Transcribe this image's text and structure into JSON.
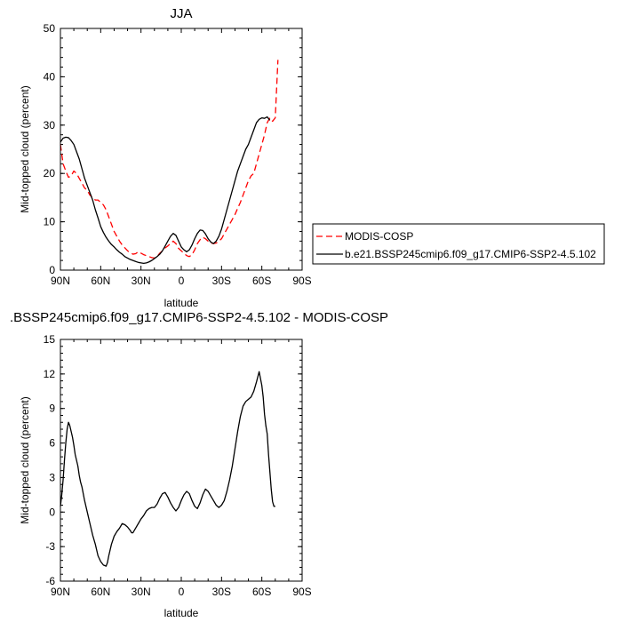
{
  "chart_data": [
    {
      "type": "line",
      "title": "JJA",
      "xlabel": "latitude",
      "ylabel": "Mid-topped cloud (percent)",
      "xlim": [
        90,
        -90
      ],
      "ylim": [
        0,
        50
      ],
      "x_ticks": [
        90,
        60,
        30,
        0,
        -30,
        -60,
        -90
      ],
      "x_tick_labels": [
        "90N",
        "60N",
        "30N",
        "0",
        "30S",
        "60S",
        "90S"
      ],
      "y_ticks": [
        0,
        10,
        20,
        30,
        40,
        50
      ],
      "y_tick_labels": [
        "0",
        "10",
        "20",
        "30",
        "40",
        "50"
      ],
      "legend_position": "right",
      "series": [
        {
          "name": "MODIS-COSP",
          "color": "#ff0000",
          "dash": "dashed",
          "x": [
            90,
            88,
            86,
            84,
            82,
            80,
            78,
            76,
            74,
            72,
            70,
            68,
            66,
            64,
            62,
            60,
            58,
            56,
            54,
            52,
            50,
            48,
            46,
            44,
            42,
            40,
            38,
            36,
            34,
            32,
            30,
            28,
            26,
            24,
            22,
            20,
            18,
            16,
            14,
            12,
            10,
            8,
            6,
            4,
            2,
            0,
            -2,
            -4,
            -6,
            -8,
            -10,
            -12,
            -14,
            -16,
            -18,
            -20,
            -22,
            -24,
            -26,
            -28,
            -30,
            -32,
            -34,
            -36,
            -38,
            -40,
            -42,
            -44,
            -46,
            -48,
            -50,
            -52,
            -54,
            -56,
            -58,
            -60,
            -62,
            -64,
            -66,
            -68,
            -70,
            -72
          ],
          "y": [
            26,
            22,
            20.5,
            19.2,
            19.5,
            20.5,
            20,
            19,
            18,
            17,
            16.5,
            15.5,
            15,
            14.5,
            14.5,
            14,
            13.5,
            12.5,
            11,
            9.5,
            8,
            7,
            6,
            5.2,
            4.6,
            4,
            3.6,
            3.3,
            3.4,
            3.8,
            3.5,
            3.2,
            3.0,
            2.8,
            2.6,
            2.5,
            2.8,
            3.5,
            4.0,
            4.6,
            5.0,
            5.5,
            6.0,
            5.5,
            4.5,
            4.0,
            3.5,
            3.0,
            2.8,
            3.2,
            4.2,
            5.5,
            6.3,
            6.8,
            6.5,
            6.0,
            5.6,
            5.5,
            5.6,
            6.0,
            6.5,
            7.5,
            8.5,
            9.5,
            10.5,
            11.5,
            12.8,
            14.0,
            15.5,
            17.0,
            18.5,
            19.5,
            20,
            22,
            24,
            26,
            28,
            30.5,
            31.5,
            30.8,
            31.5,
            43.5
          ]
        },
        {
          "name": "b.e21.BSSP245cmip6.f09_g17.CMIP6-SSP2-4.5.102",
          "color": "#000000",
          "dash": "solid",
          "x": [
            90,
            88,
            86,
            84,
            82,
            80,
            78,
            76,
            74,
            72,
            70,
            68,
            66,
            64,
            62,
            60,
            58,
            56,
            54,
            52,
            50,
            48,
            46,
            44,
            42,
            40,
            38,
            36,
            34,
            32,
            30,
            28,
            26,
            24,
            22,
            20,
            18,
            16,
            14,
            12,
            10,
            8,
            6,
            4,
            2,
            0,
            -2,
            -4,
            -6,
            -8,
            -10,
            -12,
            -14,
            -16,
            -18,
            -20,
            -22,
            -24,
            -26,
            -28,
            -30,
            -32,
            -34,
            -36,
            -38,
            -40,
            -42,
            -44,
            -46,
            -48,
            -50,
            -52,
            -54,
            -56,
            -58,
            -60,
            -62,
            -64,
            -66
          ],
          "y": [
            26.5,
            27.3,
            27.5,
            27.4,
            26.8,
            26,
            24.5,
            23,
            21,
            19,
            17.5,
            16,
            14.5,
            12.5,
            10.8,
            9,
            7.8,
            6.8,
            6.0,
            5.3,
            4.8,
            4.2,
            3.7,
            3.3,
            2.8,
            2.5,
            2.2,
            2.0,
            1.8,
            1.6,
            1.5,
            1.4,
            1.5,
            1.7,
            2.0,
            2.4,
            2.8,
            3.3,
            4.0,
            5.0,
            6.0,
            7.0,
            7.6,
            7.2,
            6.0,
            4.8,
            4.2,
            3.8,
            4.2,
            5.2,
            6.5,
            7.6,
            8.3,
            8.2,
            7.5,
            6.5,
            5.8,
            5.5,
            6.0,
            7.0,
            8.5,
            10.5,
            12.5,
            14.5,
            16.5,
            18.5,
            20.5,
            22.0,
            23.5,
            25.0,
            26.0,
            27.5,
            29.0,
            30.5,
            31.2,
            31.5,
            31.4,
            31.7,
            31.0
          ]
        }
      ]
    },
    {
      "type": "line",
      "title": ".BSSP245cmip6.f09_g17.CMIP6-SSP2-4.5.102 - MODIS-COSP",
      "xlabel": "latitude",
      "ylabel": "Mid-topped cloud (percent)",
      "xlim": [
        90,
        -90
      ],
      "ylim": [
        -6,
        15
      ],
      "x_ticks": [
        90,
        60,
        30,
        0,
        -30,
        -60,
        -90
      ],
      "x_tick_labels": [
        "90N",
        "60N",
        "30N",
        "0",
        "30S",
        "60S",
        "90S"
      ],
      "y_ticks": [
        -6,
        -3,
        0,
        3,
        6,
        9,
        12,
        15
      ],
      "y_tick_labels": [
        "-6",
        "-3",
        "0",
        "3",
        "6",
        "9",
        "12",
        "15"
      ],
      "series": [
        {
          "color": "#000000",
          "dash": "solid",
          "x": [
            90,
            89,
            88,
            87,
            86,
            85,
            84,
            83,
            82,
            81,
            80,
            79,
            78,
            77,
            76,
            75,
            74,
            72,
            70,
            68,
            66,
            64,
            62,
            60,
            58,
            56,
            55,
            54,
            52,
            50,
            48,
            46,
            44,
            42,
            40,
            38,
            37,
            36,
            34,
            32,
            30,
            28,
            26,
            24,
            22,
            20,
            18,
            16,
            14,
            12,
            10,
            8,
            6,
            4,
            2,
            0,
            -2,
            -4,
            -6,
            -8,
            -10,
            -12,
            -14,
            -16,
            -18,
            -20,
            -22,
            -24,
            -26,
            -28,
            -30,
            -32,
            -34,
            -36,
            -38,
            -40,
            -42,
            -44,
            -46,
            -48,
            -50,
            -52,
            -54,
            -56,
            -58,
            -60,
            -61,
            -62,
            -63,
            -64,
            -65,
            -66,
            -67,
            -68,
            -69,
            -70
          ],
          "y": [
            0.5,
            1.5,
            2.8,
            4.5,
            6.0,
            7.2,
            7.8,
            7.5,
            7.0,
            6.5,
            5.8,
            5.0,
            4.5,
            4.0,
            3.2,
            2.6,
            2.2,
            1.0,
            0,
            -1.0,
            -2.0,
            -2.8,
            -3.8,
            -4.3,
            -4.6,
            -4.7,
            -4.4,
            -3.8,
            -2.8,
            -2.1,
            -1.7,
            -1.4,
            -1.0,
            -1.1,
            -1.3,
            -1.6,
            -1.8,
            -1.8,
            -1.4,
            -1.0,
            -0.6,
            -0.3,
            0.1,
            0.3,
            0.4,
            0.4,
            0.7,
            1.2,
            1.6,
            1.7,
            1.3,
            0.8,
            0.4,
            0.1,
            0.4,
            1.0,
            1.5,
            1.8,
            1.6,
            1.0,
            0.5,
            0.3,
            0.8,
            1.5,
            2.0,
            1.8,
            1.4,
            1.0,
            0.6,
            0.4,
            0.6,
            1.0,
            1.8,
            2.8,
            4.0,
            5.5,
            7.0,
            8.3,
            9.2,
            9.6,
            9.8,
            10.0,
            10.5,
            11.3,
            12.2,
            11.0,
            10.0,
            8.5,
            7.5,
            6.8,
            5.0,
            3.5,
            2.0,
            0.9,
            0.5,
            0.5
          ]
        }
      ]
    }
  ]
}
